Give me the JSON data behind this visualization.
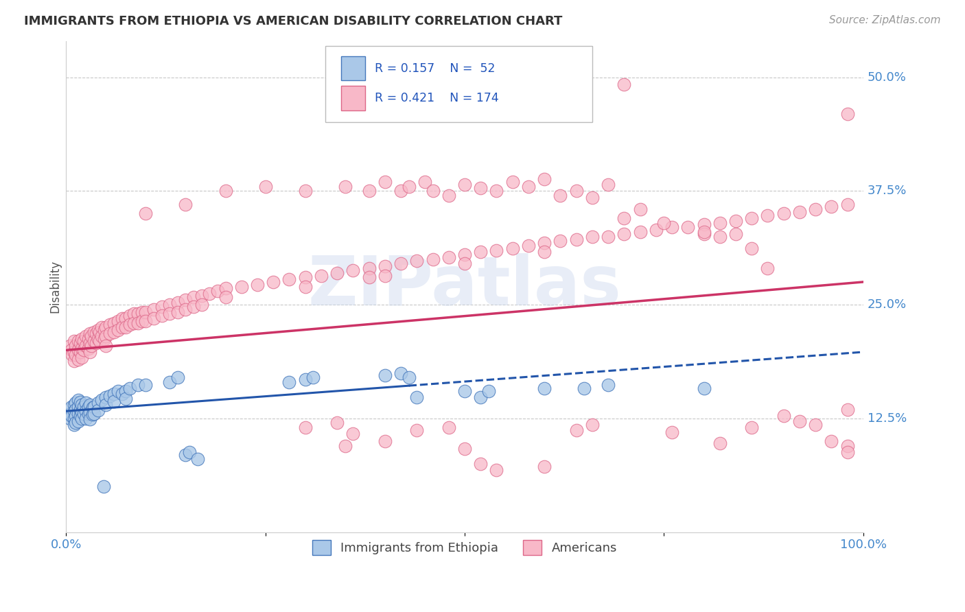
{
  "title": "IMMIGRANTS FROM ETHIOPIA VS AMERICAN DISABILITY CORRELATION CHART",
  "source": "Source: ZipAtlas.com",
  "ylabel": "Disability",
  "xlim": [
    0,
    1.0
  ],
  "ylim": [
    0,
    0.54
  ],
  "ytick_labels": [
    "12.5%",
    "25.0%",
    "37.5%",
    "50.0%"
  ],
  "ytick_pos": [
    0.125,
    0.25,
    0.375,
    0.5
  ],
  "blue_fill": "#aac8e8",
  "blue_edge": "#4477bb",
  "pink_fill": "#f8b8c8",
  "pink_edge": "#dd6688",
  "pink_line": "#cc3366",
  "blue_line": "#2255aa",
  "tick_color": "#4488cc",
  "grid_color": "#c8c8c8",
  "title_color": "#333333",
  "ylabel_color": "#555555",
  "watermark": "ZIPatlas",
  "blue_scatter": [
    [
      0.005,
      0.13
    ],
    [
      0.005,
      0.125
    ],
    [
      0.007,
      0.138
    ],
    [
      0.007,
      0.128
    ],
    [
      0.01,
      0.14
    ],
    [
      0.01,
      0.133
    ],
    [
      0.01,
      0.125
    ],
    [
      0.01,
      0.118
    ],
    [
      0.012,
      0.142
    ],
    [
      0.012,
      0.135
    ],
    [
      0.012,
      0.128
    ],
    [
      0.012,
      0.12
    ],
    [
      0.015,
      0.145
    ],
    [
      0.015,
      0.138
    ],
    [
      0.015,
      0.13
    ],
    [
      0.015,
      0.122
    ],
    [
      0.018,
      0.143
    ],
    [
      0.018,
      0.135
    ],
    [
      0.018,
      0.128
    ],
    [
      0.02,
      0.14
    ],
    [
      0.02,
      0.132
    ],
    [
      0.02,
      0.125
    ],
    [
      0.022,
      0.138
    ],
    [
      0.022,
      0.13
    ],
    [
      0.025,
      0.142
    ],
    [
      0.025,
      0.133
    ],
    [
      0.025,
      0.125
    ],
    [
      0.028,
      0.138
    ],
    [
      0.028,
      0.13
    ],
    [
      0.03,
      0.14
    ],
    [
      0.03,
      0.132
    ],
    [
      0.03,
      0.124
    ],
    [
      0.033,
      0.137
    ],
    [
      0.033,
      0.129
    ],
    [
      0.035,
      0.138
    ],
    [
      0.035,
      0.13
    ],
    [
      0.04,
      0.142
    ],
    [
      0.04,
      0.134
    ],
    [
      0.045,
      0.145
    ],
    [
      0.05,
      0.148
    ],
    [
      0.05,
      0.14
    ],
    [
      0.055,
      0.15
    ],
    [
      0.06,
      0.152
    ],
    [
      0.06,
      0.144
    ],
    [
      0.065,
      0.155
    ],
    [
      0.07,
      0.152
    ],
    [
      0.075,
      0.155
    ],
    [
      0.075,
      0.147
    ],
    [
      0.08,
      0.158
    ],
    [
      0.09,
      0.162
    ],
    [
      0.1,
      0.162
    ],
    [
      0.13,
      0.165
    ],
    [
      0.14,
      0.17
    ],
    [
      0.15,
      0.085
    ],
    [
      0.155,
      0.088
    ],
    [
      0.165,
      0.08
    ],
    [
      0.28,
      0.165
    ],
    [
      0.3,
      0.168
    ],
    [
      0.31,
      0.17
    ],
    [
      0.4,
      0.172
    ],
    [
      0.42,
      0.175
    ],
    [
      0.43,
      0.17
    ],
    [
      0.44,
      0.148
    ],
    [
      0.5,
      0.155
    ],
    [
      0.52,
      0.148
    ],
    [
      0.53,
      0.155
    ],
    [
      0.6,
      0.158
    ],
    [
      0.65,
      0.158
    ],
    [
      0.68,
      0.162
    ],
    [
      0.8,
      0.158
    ],
    [
      0.047,
      0.05
    ]
  ],
  "pink_scatter": [
    [
      0.005,
      0.205
    ],
    [
      0.007,
      0.2
    ],
    [
      0.008,
      0.195
    ],
    [
      0.01,
      0.21
    ],
    [
      0.01,
      0.198
    ],
    [
      0.01,
      0.188
    ],
    [
      0.012,
      0.205
    ],
    [
      0.012,
      0.195
    ],
    [
      0.015,
      0.21
    ],
    [
      0.015,
      0.2
    ],
    [
      0.015,
      0.19
    ],
    [
      0.018,
      0.208
    ],
    [
      0.018,
      0.198
    ],
    [
      0.02,
      0.212
    ],
    [
      0.02,
      0.202
    ],
    [
      0.02,
      0.192
    ],
    [
      0.022,
      0.21
    ],
    [
      0.022,
      0.2
    ],
    [
      0.025,
      0.215
    ],
    [
      0.025,
      0.205
    ],
    [
      0.028,
      0.212
    ],
    [
      0.028,
      0.202
    ],
    [
      0.03,
      0.218
    ],
    [
      0.03,
      0.208
    ],
    [
      0.03,
      0.198
    ],
    [
      0.032,
      0.215
    ],
    [
      0.032,
      0.205
    ],
    [
      0.035,
      0.22
    ],
    [
      0.035,
      0.21
    ],
    [
      0.038,
      0.218
    ],
    [
      0.038,
      0.208
    ],
    [
      0.04,
      0.222
    ],
    [
      0.04,
      0.212
    ],
    [
      0.042,
      0.22
    ],
    [
      0.042,
      0.21
    ],
    [
      0.045,
      0.225
    ],
    [
      0.045,
      0.215
    ],
    [
      0.048,
      0.222
    ],
    [
      0.048,
      0.212
    ],
    [
      0.05,
      0.225
    ],
    [
      0.05,
      0.215
    ],
    [
      0.05,
      0.205
    ],
    [
      0.055,
      0.228
    ],
    [
      0.055,
      0.218
    ],
    [
      0.06,
      0.23
    ],
    [
      0.06,
      0.22
    ],
    [
      0.065,
      0.232
    ],
    [
      0.065,
      0.222
    ],
    [
      0.07,
      0.235
    ],
    [
      0.07,
      0.225
    ],
    [
      0.075,
      0.235
    ],
    [
      0.075,
      0.225
    ],
    [
      0.08,
      0.238
    ],
    [
      0.08,
      0.228
    ],
    [
      0.085,
      0.24
    ],
    [
      0.085,
      0.23
    ],
    [
      0.09,
      0.24
    ],
    [
      0.09,
      0.23
    ],
    [
      0.095,
      0.242
    ],
    [
      0.095,
      0.232
    ],
    [
      0.1,
      0.242
    ],
    [
      0.1,
      0.232
    ],
    [
      0.11,
      0.245
    ],
    [
      0.11,
      0.235
    ],
    [
      0.12,
      0.248
    ],
    [
      0.12,
      0.238
    ],
    [
      0.13,
      0.25
    ],
    [
      0.13,
      0.24
    ],
    [
      0.14,
      0.252
    ],
    [
      0.14,
      0.242
    ],
    [
      0.15,
      0.255
    ],
    [
      0.15,
      0.245
    ],
    [
      0.16,
      0.258
    ],
    [
      0.16,
      0.248
    ],
    [
      0.17,
      0.26
    ],
    [
      0.17,
      0.25
    ],
    [
      0.18,
      0.262
    ],
    [
      0.19,
      0.265
    ],
    [
      0.2,
      0.268
    ],
    [
      0.2,
      0.258
    ],
    [
      0.22,
      0.27
    ],
    [
      0.24,
      0.272
    ],
    [
      0.26,
      0.275
    ],
    [
      0.28,
      0.278
    ],
    [
      0.3,
      0.28
    ],
    [
      0.3,
      0.27
    ],
    [
      0.32,
      0.282
    ],
    [
      0.34,
      0.285
    ],
    [
      0.36,
      0.288
    ],
    [
      0.38,
      0.29
    ],
    [
      0.38,
      0.28
    ],
    [
      0.4,
      0.292
    ],
    [
      0.4,
      0.282
    ],
    [
      0.42,
      0.295
    ],
    [
      0.44,
      0.298
    ],
    [
      0.46,
      0.3
    ],
    [
      0.48,
      0.302
    ],
    [
      0.5,
      0.305
    ],
    [
      0.5,
      0.295
    ],
    [
      0.52,
      0.308
    ],
    [
      0.54,
      0.31
    ],
    [
      0.56,
      0.312
    ],
    [
      0.58,
      0.315
    ],
    [
      0.6,
      0.318
    ],
    [
      0.6,
      0.308
    ],
    [
      0.62,
      0.32
    ],
    [
      0.64,
      0.322
    ],
    [
      0.66,
      0.325
    ],
    [
      0.68,
      0.325
    ],
    [
      0.7,
      0.328
    ],
    [
      0.72,
      0.33
    ],
    [
      0.74,
      0.332
    ],
    [
      0.76,
      0.335
    ],
    [
      0.78,
      0.335
    ],
    [
      0.8,
      0.338
    ],
    [
      0.8,
      0.328
    ],
    [
      0.82,
      0.34
    ],
    [
      0.84,
      0.342
    ],
    [
      0.86,
      0.345
    ],
    [
      0.88,
      0.348
    ],
    [
      0.9,
      0.35
    ],
    [
      0.92,
      0.352
    ],
    [
      0.94,
      0.355
    ],
    [
      0.96,
      0.358
    ],
    [
      0.98,
      0.36
    ],
    [
      0.1,
      0.35
    ],
    [
      0.15,
      0.36
    ],
    [
      0.2,
      0.375
    ],
    [
      0.25,
      0.38
    ],
    [
      0.3,
      0.375
    ],
    [
      0.35,
      0.38
    ],
    [
      0.38,
      0.375
    ],
    [
      0.4,
      0.385
    ],
    [
      0.42,
      0.375
    ],
    [
      0.43,
      0.38
    ],
    [
      0.45,
      0.385
    ],
    [
      0.46,
      0.375
    ],
    [
      0.48,
      0.37
    ],
    [
      0.5,
      0.382
    ],
    [
      0.52,
      0.378
    ],
    [
      0.54,
      0.375
    ],
    [
      0.56,
      0.385
    ],
    [
      0.58,
      0.38
    ],
    [
      0.6,
      0.388
    ],
    [
      0.62,
      0.37
    ],
    [
      0.64,
      0.375
    ],
    [
      0.66,
      0.368
    ],
    [
      0.68,
      0.382
    ],
    [
      0.7,
      0.345
    ],
    [
      0.72,
      0.355
    ],
    [
      0.75,
      0.34
    ],
    [
      0.8,
      0.33
    ],
    [
      0.82,
      0.325
    ],
    [
      0.84,
      0.328
    ],
    [
      0.86,
      0.312
    ],
    [
      0.88,
      0.29
    ],
    [
      0.9,
      0.128
    ],
    [
      0.92,
      0.122
    ],
    [
      0.94,
      0.118
    ],
    [
      0.96,
      0.1
    ],
    [
      0.98,
      0.095
    ],
    [
      0.3,
      0.115
    ],
    [
      0.34,
      0.12
    ],
    [
      0.35,
      0.095
    ],
    [
      0.36,
      0.108
    ],
    [
      0.4,
      0.1
    ],
    [
      0.44,
      0.112
    ],
    [
      0.48,
      0.115
    ],
    [
      0.5,
      0.092
    ],
    [
      0.52,
      0.075
    ],
    [
      0.54,
      0.068
    ],
    [
      0.6,
      0.072
    ],
    [
      0.64,
      0.112
    ],
    [
      0.66,
      0.118
    ],
    [
      0.76,
      0.11
    ],
    [
      0.82,
      0.098
    ],
    [
      0.86,
      0.115
    ],
    [
      0.98,
      0.088
    ],
    [
      0.64,
      0.5
    ],
    [
      0.7,
      0.492
    ],
    [
      0.98,
      0.46
    ],
    [
      0.98,
      0.135
    ]
  ]
}
